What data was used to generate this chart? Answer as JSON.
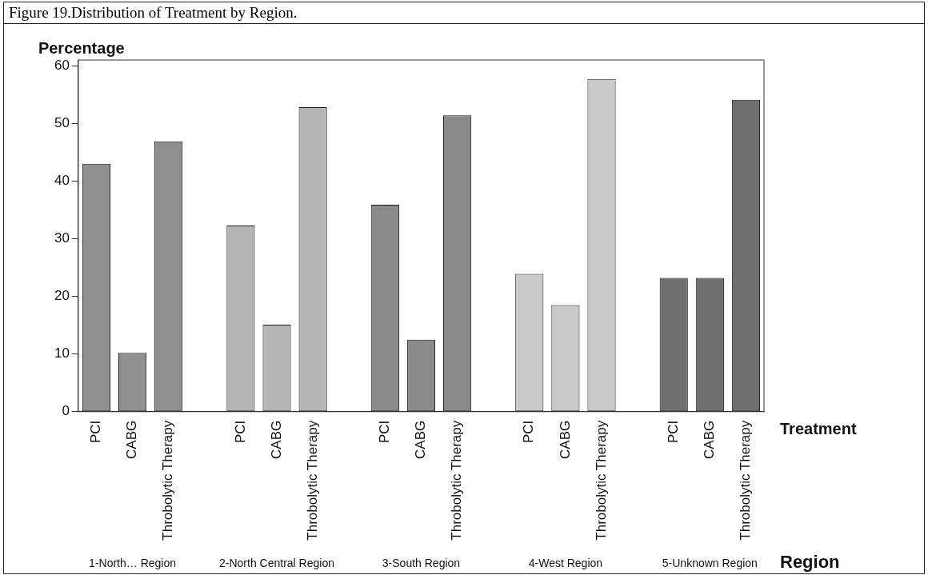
{
  "chart_data": {
    "type": "bar",
    "title": "Figure 19.Distribution of Treatment by Region.",
    "ylabel": "Percentage",
    "xlabel": "Treatment",
    "categories": [
      "PCI",
      "CABG",
      "Throbolytic Therapy",
      null,
      "PCI",
      "CABG",
      "Throbolytic Therapy",
      null,
      "PCI",
      "CABG",
      "Throbolytic Therapy",
      null,
      "PCI",
      "CABG",
      "Throbolytic Therapy",
      null,
      "PCI",
      "CABG",
      "Throbolytic Therapy"
    ],
    "values": [
      43,
      10.2,
      46.9,
      null,
      32.3,
      15.1,
      52.8,
      null,
      35.9,
      12.5,
      51.4,
      null,
      23.9,
      18.5,
      57.7,
      null,
      23.2,
      23.2,
      54.1
    ],
    "colors": [
      "#8f8f8f",
      "#8f8f8f",
      "#8f8f8f",
      "#ffffff",
      "#b5b5b5",
      "#b5b5b5",
      "#b5b5b5",
      "#ffffff",
      "#8a8a8a",
      "#8a8a8a",
      "#8a8a8a",
      "#ffffff",
      "#c9c9c9",
      "#c9c9c9",
      "#c9c9c9",
      "#ffffff",
      "#6f6f6f",
      "#6f6f6f",
      "#6f6f6f"
    ],
    "ylim": [
      0,
      61
    ],
    "yticks": [
      0,
      10,
      20,
      30,
      40,
      50,
      60
    ],
    "grid": false,
    "legend": false,
    "annotations": [
      "1-North… Region",
      "2-North Central Region",
      "3-South Region",
      "4-West Region",
      "5-Unknown Region",
      "Region"
    ]
  }
}
